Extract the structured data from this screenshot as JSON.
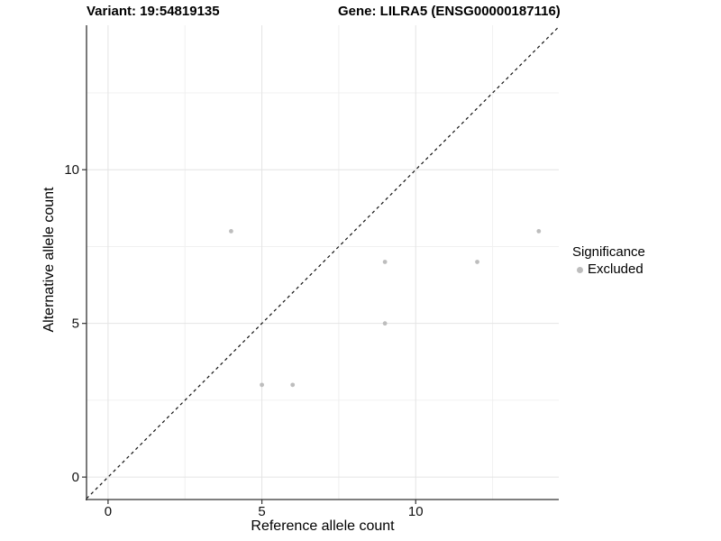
{
  "title_left": "Variant: 19:54819135",
  "title_right": "Gene: LILRA5 (ENSG00000187116)",
  "chart_data": {
    "type": "scatter",
    "title": "Variant: 19:54819135  /  Gene: LILRA5 (ENSG00000187116)",
    "xlabel": "Reference allele count",
    "ylabel": "Alternative allele count",
    "xlim": [
      -0.7,
      14.65
    ],
    "ylim": [
      -0.73,
      14.7
    ],
    "x_major_ticks": [
      0,
      5,
      10
    ],
    "x_minor_ticks": [
      2.5,
      7.5,
      12.5
    ],
    "y_major_ticks": [
      0,
      5,
      10
    ],
    "y_minor_ticks": [
      2.5,
      7.5,
      12.5
    ],
    "grid": true,
    "series": [
      {
        "name": "Excluded",
        "color": "#bdbdbd",
        "points": [
          [
            4,
            8
          ],
          [
            5,
            3
          ],
          [
            6,
            3
          ],
          [
            9,
            5
          ],
          [
            9,
            7
          ],
          [
            12,
            7
          ],
          [
            14,
            8
          ]
        ]
      }
    ],
    "reference_line": {
      "type": "identity",
      "slope": 1,
      "intercept": 0,
      "style": "dashed",
      "color": "#111111"
    },
    "legend": {
      "title": "Significance",
      "position": "right",
      "items": [
        {
          "label": "Excluded",
          "color": "#bdbdbd"
        }
      ]
    },
    "colors": {
      "background": "#ffffff",
      "grid_major": "#e4e4e4",
      "grid_minor": "#f0f0f0",
      "axis_line": "#333333",
      "point": "#bdbdbd"
    }
  }
}
